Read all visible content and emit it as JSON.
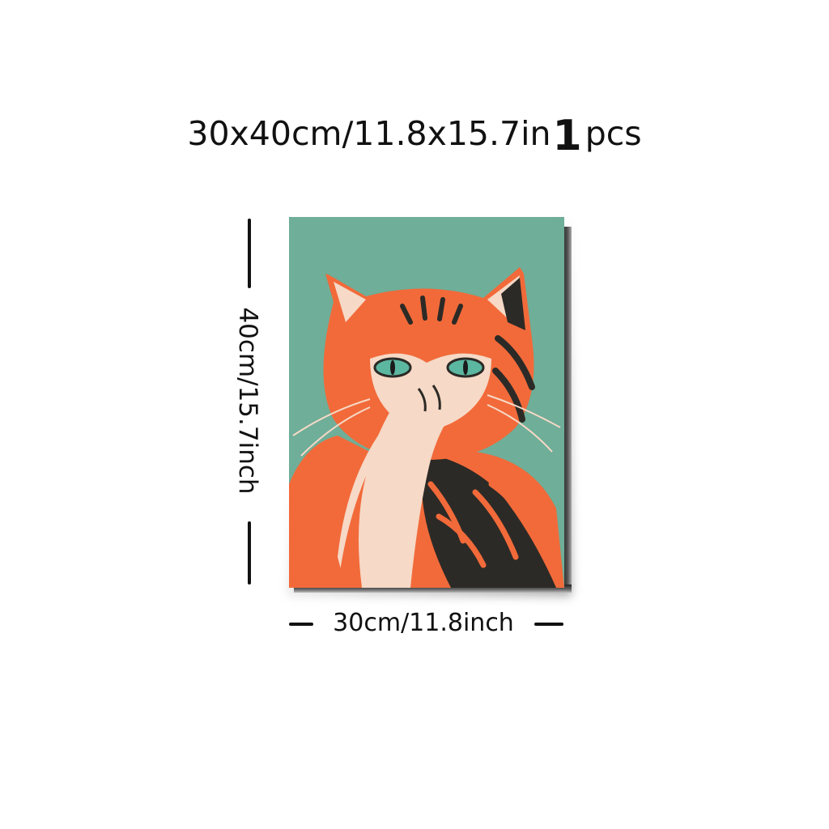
{
  "header": {
    "size_text": "30x40cm/11.8x15.7in",
    "quantity_number": "1",
    "quantity_unit": "pcs"
  },
  "dimensions": {
    "height_label": "40cm/15.7inch",
    "width_label": "30cm/11.8inch"
  },
  "artwork": {
    "subject": "orange tabby cat with paw over mouth",
    "background_color": "#6fae98",
    "cat_orange": "#f26a3a",
    "cat_cream": "#f6d9c6",
    "cat_dark": "#2c2a26",
    "eye_color": "#5cb7a1"
  }
}
